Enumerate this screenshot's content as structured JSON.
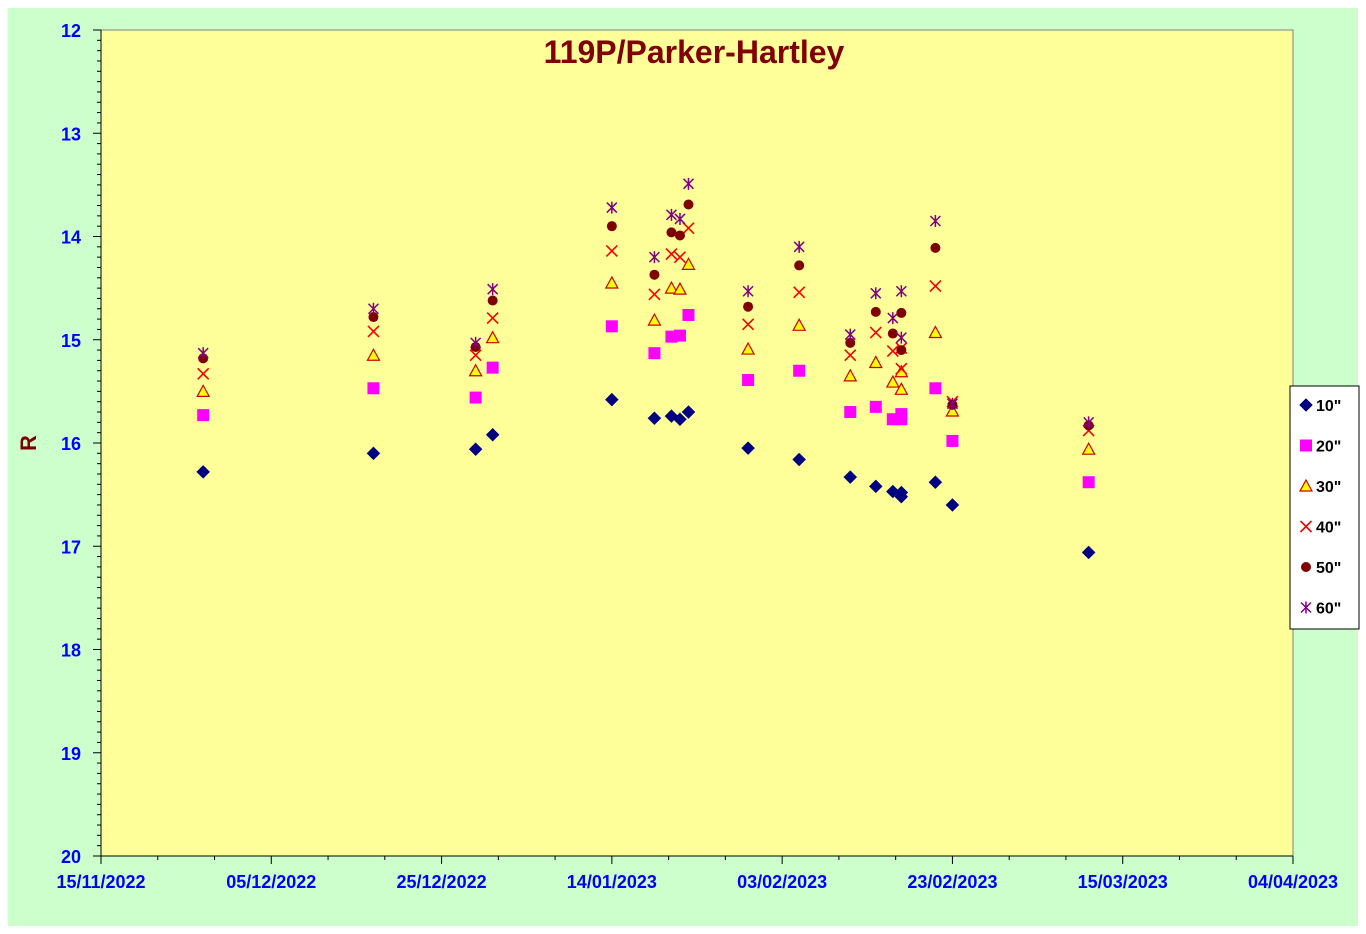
{
  "chart_data": {
    "type": "scatter",
    "title": "119P/Parker-Hartley",
    "xlabel": "",
    "ylabel": "R",
    "x_type": "date",
    "xlim": [
      "2022-11-15",
      "2023-04-04"
    ],
    "ylim": [
      12,
      20
    ],
    "y_inverted": true,
    "y_ticks": [
      "12",
      "13",
      "14",
      "15",
      "16",
      "17",
      "18",
      "19",
      "20"
    ],
    "x_ticks": [
      "15/11/2022",
      "05/12/2022",
      "25/12/2022",
      "14/01/2023",
      "03/02/2023",
      "23/02/2023",
      "15/03/2023",
      "04/04/2023"
    ],
    "legend_position": "right",
    "grid": false,
    "colors": {
      "plot_bg": "#ffff99",
      "chart_bg": "#ccffcc",
      "axis": "#000000"
    },
    "series": [
      {
        "name": "10\"",
        "marker": "diamond",
        "color": "#000080",
        "points": [
          [
            "2022-11-27T00:00",
            16.28
          ],
          [
            "2022-12-17T00:00",
            16.1
          ],
          [
            "2022-12-29T00:00",
            16.06
          ],
          [
            "2022-12-31T00:00",
            15.92
          ],
          [
            "2023-01-14T00:00",
            15.58
          ],
          [
            "2023-01-19T00:00",
            15.76
          ],
          [
            "2023-01-21T00:00",
            15.74
          ],
          [
            "2023-01-22T00:00",
            15.77
          ],
          [
            "2023-01-23T00:00",
            15.7
          ],
          [
            "2023-01-30T00:00",
            16.05
          ],
          [
            "2023-02-05T00:00",
            16.16
          ],
          [
            "2023-02-11T00:00",
            16.33
          ],
          [
            "2023-02-14T00:00",
            16.42
          ],
          [
            "2023-02-16T00:00",
            16.47
          ],
          [
            "2023-02-17T00:00",
            16.52
          ],
          [
            "2023-02-17T00:00",
            16.48
          ],
          [
            "2023-02-21T00:00",
            16.38
          ],
          [
            "2023-02-23T00:00",
            16.6
          ],
          [
            "2023-03-11T00:00",
            17.06
          ]
        ]
      },
      {
        "name": "20\"",
        "marker": "square",
        "color": "#ff00ff",
        "points": [
          [
            "2022-11-27T00:00",
            15.73
          ],
          [
            "2022-12-17T00:00",
            15.47
          ],
          [
            "2022-12-29T00:00",
            15.56
          ],
          [
            "2022-12-31T00:00",
            15.27
          ],
          [
            "2023-01-14T00:00",
            14.87
          ],
          [
            "2023-01-19T00:00",
            15.13
          ],
          [
            "2023-01-21T00:00",
            14.97
          ],
          [
            "2023-01-22T00:00",
            14.96
          ],
          [
            "2023-01-23T00:00",
            14.76
          ],
          [
            "2023-01-30T00:00",
            15.39
          ],
          [
            "2023-02-05T00:00",
            15.3
          ],
          [
            "2023-02-11T00:00",
            15.7
          ],
          [
            "2023-02-14T00:00",
            15.65
          ],
          [
            "2023-02-16T00:00",
            15.77
          ],
          [
            "2023-02-17T00:00",
            15.77
          ],
          [
            "2023-02-17T00:00",
            15.72
          ],
          [
            "2023-02-21T00:00",
            15.47
          ],
          [
            "2023-02-23T00:00",
            15.98
          ],
          [
            "2023-03-11T00:00",
            16.38
          ]
        ]
      },
      {
        "name": "30\"",
        "marker": "triangle",
        "color": "#cc0000",
        "fill": "#ffff00",
        "points": [
          [
            "2022-11-27T00:00",
            15.5
          ],
          [
            "2022-12-17T00:00",
            15.15
          ],
          [
            "2022-12-29T00:00",
            15.3
          ],
          [
            "2022-12-31T00:00",
            14.98
          ],
          [
            "2023-01-14T00:00",
            14.45
          ],
          [
            "2023-01-19T00:00",
            14.81
          ],
          [
            "2023-01-21T00:00",
            14.5
          ],
          [
            "2023-01-22T00:00",
            14.51
          ],
          [
            "2023-01-23T00:00",
            14.27
          ],
          [
            "2023-01-30T00:00",
            15.09
          ],
          [
            "2023-02-05T00:00",
            14.86
          ],
          [
            "2023-02-11T00:00",
            15.35
          ],
          [
            "2023-02-14T00:00",
            15.22
          ],
          [
            "2023-02-16T00:00",
            15.41
          ],
          [
            "2023-02-17T00:00",
            15.48
          ],
          [
            "2023-02-17T00:00",
            15.31
          ],
          [
            "2023-02-21T00:00",
            14.93
          ],
          [
            "2023-02-23T00:00",
            15.69
          ],
          [
            "2023-03-11T00:00",
            16.06
          ]
        ]
      },
      {
        "name": "40\"",
        "marker": "x",
        "color": "#ff0000",
        "points": [
          [
            "2022-11-27T00:00",
            15.33
          ],
          [
            "2022-12-17T00:00",
            14.92
          ],
          [
            "2022-12-29T00:00",
            15.15
          ],
          [
            "2022-12-31T00:00",
            14.79
          ],
          [
            "2023-01-14T00:00",
            14.14
          ],
          [
            "2023-01-19T00:00",
            14.56
          ],
          [
            "2023-01-21T00:00",
            14.17
          ],
          [
            "2023-01-22T00:00",
            14.2
          ],
          [
            "2023-01-23T00:00",
            13.92
          ],
          [
            "2023-01-30T00:00",
            14.85
          ],
          [
            "2023-02-05T00:00",
            14.54
          ],
          [
            "2023-02-11T00:00",
            15.15
          ],
          [
            "2023-02-14T00:00",
            14.93
          ],
          [
            "2023-02-16T00:00",
            15.11
          ],
          [
            "2023-02-17T00:00",
            15.28
          ],
          [
            "2023-02-17T00:00",
            15.08
          ],
          [
            "2023-02-21T00:00",
            14.48
          ],
          [
            "2023-02-23T00:00",
            15.6
          ],
          [
            "2023-03-11T00:00",
            15.88
          ]
        ]
      },
      {
        "name": "50\"",
        "marker": "circle",
        "color": "#800000",
        "points": [
          [
            "2022-11-27T00:00",
            15.18
          ],
          [
            "2022-12-17T00:00",
            14.78
          ],
          [
            "2022-12-29T00:00",
            15.07
          ],
          [
            "2022-12-31T00:00",
            14.62
          ],
          [
            "2023-01-14T00:00",
            13.9
          ],
          [
            "2023-01-19T00:00",
            14.37
          ],
          [
            "2023-01-21T00:00",
            13.96
          ],
          [
            "2023-01-22T00:00",
            13.99
          ],
          [
            "2023-01-23T00:00",
            13.69
          ],
          [
            "2023-01-30T00:00",
            14.68
          ],
          [
            "2023-02-05T00:00",
            14.28
          ],
          [
            "2023-02-11T00:00",
            15.03
          ],
          [
            "2023-02-14T00:00",
            14.73
          ],
          [
            "2023-02-16T00:00",
            14.94
          ],
          [
            "2023-02-17T00:00",
            15.1
          ],
          [
            "2023-02-17T00:00",
            14.74
          ],
          [
            "2023-02-21T00:00",
            14.11
          ],
          [
            "2023-02-23T00:00",
            15.63
          ],
          [
            "2023-03-11T00:00",
            15.83
          ]
        ]
      },
      {
        "name": "60\"",
        "marker": "star",
        "color": "#800080",
        "points": [
          [
            "2022-11-27T00:00",
            15.13
          ],
          [
            "2022-12-17T00:00",
            14.7
          ],
          [
            "2022-12-29T00:00",
            15.03
          ],
          [
            "2022-12-31T00:00",
            14.51
          ],
          [
            "2023-01-14T00:00",
            13.72
          ],
          [
            "2023-01-19T00:00",
            14.2
          ],
          [
            "2023-01-21T00:00",
            13.79
          ],
          [
            "2023-01-22T00:00",
            13.83
          ],
          [
            "2023-01-23T00:00",
            13.49
          ],
          [
            "2023-01-30T00:00",
            14.53
          ],
          [
            "2023-02-05T00:00",
            14.1
          ],
          [
            "2023-02-11T00:00",
            14.95
          ],
          [
            "2023-02-14T00:00",
            14.55
          ],
          [
            "2023-02-16T00:00",
            14.79
          ],
          [
            "2023-02-17T00:00",
            14.98
          ],
          [
            "2023-02-17T00:00",
            14.53
          ],
          [
            "2023-02-21T00:00",
            13.85
          ],
          [
            "2023-02-23T00:00",
            15.62
          ],
          [
            "2023-03-11T00:00",
            15.8
          ]
        ]
      }
    ]
  }
}
